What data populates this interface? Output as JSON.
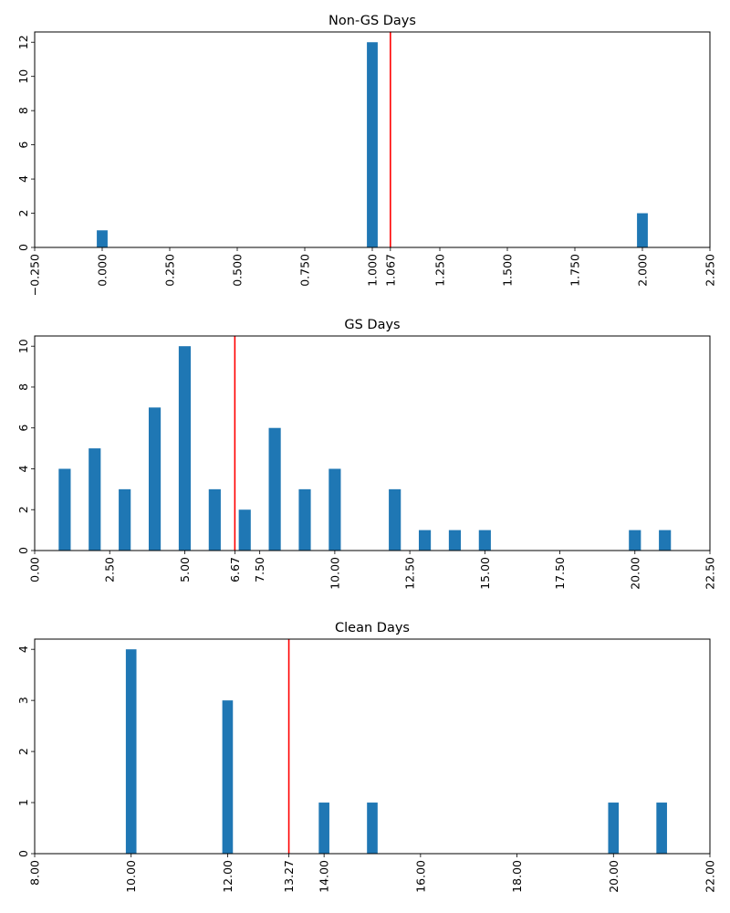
{
  "chart_data": [
    {
      "type": "bar",
      "title": "Non-GS Days",
      "xlabel": "",
      "ylabel": "",
      "xlim": [
        -0.25,
        2.25
      ],
      "ylim": [
        0,
        12.6
      ],
      "bar_width": 0.04,
      "xticks": [
        -0.25,
        0.0,
        0.25,
        0.5,
        0.75,
        1.0,
        1.067,
        1.25,
        1.5,
        1.75,
        2.0,
        2.25
      ],
      "xtick_labels": [
        "−0.250",
        "0.000",
        "0.250",
        "0.500",
        "0.750",
        "1.000",
        "1.067",
        "1.250",
        "1.500",
        "1.750",
        "2.000",
        "2.250"
      ],
      "yticks": [
        0,
        2,
        4,
        6,
        8,
        10,
        12
      ],
      "bars": [
        {
          "x": 0,
          "value": 1
        },
        {
          "x": 1,
          "value": 12
        },
        {
          "x": 2,
          "value": 2
        }
      ],
      "mean_line": 1.067,
      "grid": false,
      "colors": {
        "bar": "#1f77b4",
        "mean_line": "#ff0000"
      }
    },
    {
      "type": "bar",
      "title": "GS Days",
      "xlabel": "",
      "ylabel": "",
      "xlim": [
        0,
        22.5
      ],
      "ylim": [
        0,
        10.5
      ],
      "bar_width": 0.4,
      "xticks": [
        0,
        2.5,
        5,
        6.67,
        7.5,
        10,
        12.5,
        15,
        17.5,
        20,
        22.5
      ],
      "xtick_labels": [
        "0.00",
        "2.50",
        "5.00",
        "6.67",
        "7.50",
        "10.00",
        "12.50",
        "15.00",
        "17.50",
        "20.00",
        "22.50"
      ],
      "yticks": [
        0,
        2,
        4,
        6,
        8,
        10
      ],
      "bars": [
        {
          "x": 1,
          "value": 4
        },
        {
          "x": 2,
          "value": 5
        },
        {
          "x": 3,
          "value": 3
        },
        {
          "x": 4,
          "value": 7
        },
        {
          "x": 5,
          "value": 10
        },
        {
          "x": 6,
          "value": 3
        },
        {
          "x": 7,
          "value": 2
        },
        {
          "x": 8,
          "value": 6
        },
        {
          "x": 9,
          "value": 3
        },
        {
          "x": 10,
          "value": 4
        },
        {
          "x": 12,
          "value": 3
        },
        {
          "x": 13,
          "value": 1
        },
        {
          "x": 14,
          "value": 1
        },
        {
          "x": 15,
          "value": 1
        },
        {
          "x": 20,
          "value": 1
        },
        {
          "x": 21,
          "value": 1
        }
      ],
      "mean_line": 6.67,
      "grid": false,
      "colors": {
        "bar": "#1f77b4",
        "mean_line": "#ff0000"
      }
    },
    {
      "type": "bar",
      "title": "Clean Days",
      "xlabel": "",
      "ylabel": "",
      "xlim": [
        8,
        22
      ],
      "ylim": [
        0,
        4.2
      ],
      "bar_width": 0.22,
      "xticks": [
        8,
        10,
        12,
        13.27,
        14,
        16,
        18,
        20,
        22
      ],
      "xtick_labels": [
        "8.00",
        "10.00",
        "12.00",
        "13.27",
        "14.00",
        "16.00",
        "18.00",
        "20.00",
        "22.00"
      ],
      "yticks": [
        0,
        1,
        2,
        3,
        4
      ],
      "bars": [
        {
          "x": 10,
          "value": 4
        },
        {
          "x": 12,
          "value": 3
        },
        {
          "x": 14,
          "value": 1
        },
        {
          "x": 15,
          "value": 1
        },
        {
          "x": 20,
          "value": 1
        },
        {
          "x": 21,
          "value": 1
        }
      ],
      "mean_line": 13.27,
      "grid": false,
      "colors": {
        "bar": "#1f77b4",
        "mean_line": "#ff0000"
      }
    }
  ]
}
